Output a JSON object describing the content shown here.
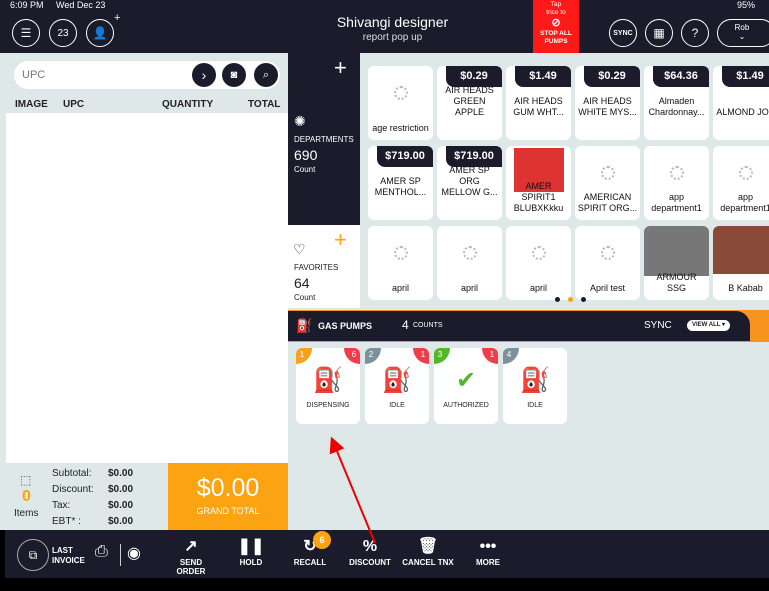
{
  "status": {
    "time": "6:09 PM",
    "date": "Wed Dec 23",
    "battery": "95%"
  },
  "header": {
    "title": "Shivangi designer",
    "subtitle": "report pop up",
    "calendar_day": "23",
    "stop_pumps": {
      "line1": "Tap",
      "line2": "trice to",
      "line3": "STOP ALL",
      "line4": "PUMPS"
    },
    "sync": "SYNC",
    "help": "?",
    "user": "Rob",
    "add": "+"
  },
  "search": {
    "placeholder": "UPC"
  },
  "table": {
    "columns": [
      "IMAGE",
      "UPC",
      "QUANTITY",
      "TOTAL"
    ]
  },
  "departments": {
    "label": "DEPARTMENTS",
    "count": "690",
    "count_label": "Count"
  },
  "favorites": {
    "label": "FAVORITES",
    "count": "64",
    "count_label": "Count"
  },
  "products": [
    {
      "name": "age restriction",
      "price": ""
    },
    {
      "name": "AIR HEADS GREEN APPLE",
      "price": "$0.29"
    },
    {
      "name": "AIR HEADS GUM WHT...",
      "price": "$1.49"
    },
    {
      "name": "AIR HEADS WHITE MYS...",
      "price": "$0.29"
    },
    {
      "name": "Almaden Chardonnay...",
      "price": "$64.36"
    },
    {
      "name": "ALMOND JOY",
      "price": "$1.49"
    },
    {
      "name": "AMER SP MENTHOL...",
      "price": "$719.00"
    },
    {
      "name": "AMER SP ORG MELLOW G...",
      "price": "$719.00"
    },
    {
      "name": "AMER SPIRIT1 BLUBXKkku",
      "price": ""
    },
    {
      "name": "AMERICAN SPIRIT ORG...",
      "price": ""
    },
    {
      "name": "app department1",
      "price": ""
    },
    {
      "name": "app department1",
      "price": ""
    },
    {
      "name": "april",
      "price": ""
    },
    {
      "name": "april",
      "price": ""
    },
    {
      "name": "april",
      "price": ""
    },
    {
      "name": "April test",
      "price": ""
    },
    {
      "name": "ARMOUR SSG",
      "price": ""
    },
    {
      "name": "B Kabab",
      "price": ""
    }
  ],
  "gas": {
    "title": "GAS PUMPS",
    "count": "4",
    "count_label": "COUNTS",
    "sync": "SYNC",
    "view_all": "VIEW ALL",
    "pumps": [
      {
        "num": "1",
        "badge": "6",
        "status": "DISPENSING",
        "color": "#f7a21b"
      },
      {
        "num": "2",
        "badge": "1",
        "status": "IDLE",
        "color": "#7c919c"
      },
      {
        "num": "3",
        "badge": "1",
        "status": "AUTHORIZED",
        "color": "#52b82a"
      },
      {
        "num": "4",
        "badge": "",
        "status": "IDLE",
        "color": "#7c919c"
      }
    ]
  },
  "summary": {
    "items_count": "0",
    "items_label": "Items",
    "rows": [
      {
        "label": "Subtotal:",
        "value": "$0.00"
      },
      {
        "label": "Discount:",
        "value": "$0.00"
      },
      {
        "label": "Tax:",
        "value": "$0.00"
      },
      {
        "label": "EBT* :",
        "value": "$0.00"
      }
    ],
    "grand_total": "$0.00",
    "grand_label": "GRAND TOTAL"
  },
  "toolbar": {
    "last_invoice1": "LAST",
    "last_invoice2": "INVOICE",
    "send_order": "SEND ORDER",
    "hold": "HOLD",
    "recall": "RECALL",
    "recall_badge": "6",
    "discount": "DISCOUNT",
    "cancel": "CANCEL TNX",
    "more": "MORE"
  },
  "colors": {
    "dark": "#1c1b2b",
    "accent": "#fca311",
    "danger": "#ff1a1a"
  }
}
